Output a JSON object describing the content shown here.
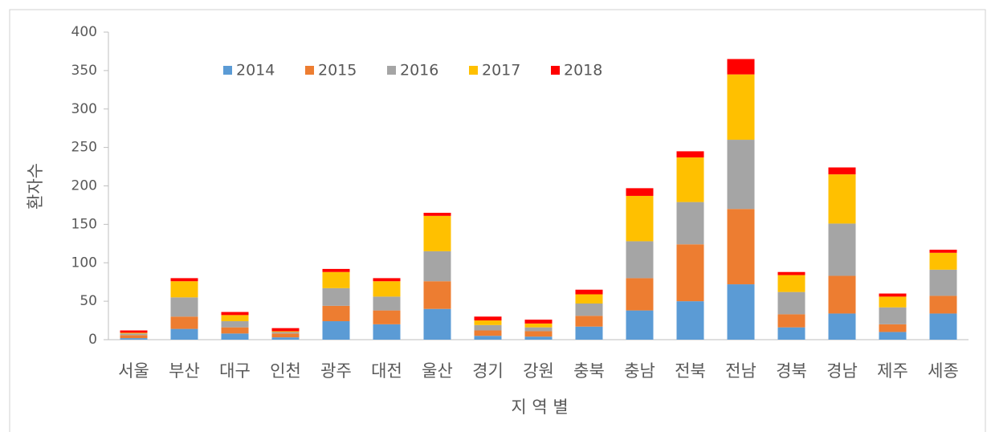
{
  "chart_data": {
    "type": "stacked_bar",
    "y_label": "환자수",
    "x_label": "지 역 별",
    "categories": [
      "서울",
      "부산",
      "대구",
      "인천",
      "광주",
      "대전",
      "울산",
      "경기",
      "강원",
      "충북",
      "충남",
      "전북",
      "전남",
      "경북",
      "경남",
      "제주",
      "세종"
    ],
    "series": [
      {
        "name": "2014",
        "color": "#5b9bd5",
        "values": [
          2,
          14,
          8,
          3,
          24,
          20,
          40,
          5,
          4,
          17,
          38,
          50,
          72,
          16,
          34,
          10,
          34
        ]
      },
      {
        "name": "2015",
        "color": "#ed7d31",
        "values": [
          4,
          16,
          8,
          5,
          20,
          18,
          36,
          7,
          7,
          14,
          42,
          74,
          98,
          17,
          49,
          10,
          23
        ]
      },
      {
        "name": "2016",
        "color": "#a5a5a5",
        "values": [
          2,
          25,
          8,
          2,
          23,
          18,
          39,
          7,
          5,
          16,
          48,
          55,
          90,
          29,
          68,
          22,
          34
        ]
      },
      {
        "name": "2017",
        "color": "#ffc000",
        "values": [
          1,
          21,
          8,
          1,
          21,
          20,
          46,
          6,
          5,
          12,
          59,
          58,
          85,
          22,
          64,
          14,
          22
        ]
      },
      {
        "name": "2018",
        "color": "#ff0000",
        "values": [
          3,
          4,
          4,
          4,
          4,
          4,
          4,
          5,
          5,
          6,
          10,
          8,
          20,
          4,
          9,
          4,
          4
        ]
      }
    ],
    "ylim": [
      0,
      400
    ],
    "yticks": [
      0,
      50,
      100,
      150,
      200,
      250,
      300,
      350,
      400
    ],
    "grid": false,
    "legend": "top"
  }
}
